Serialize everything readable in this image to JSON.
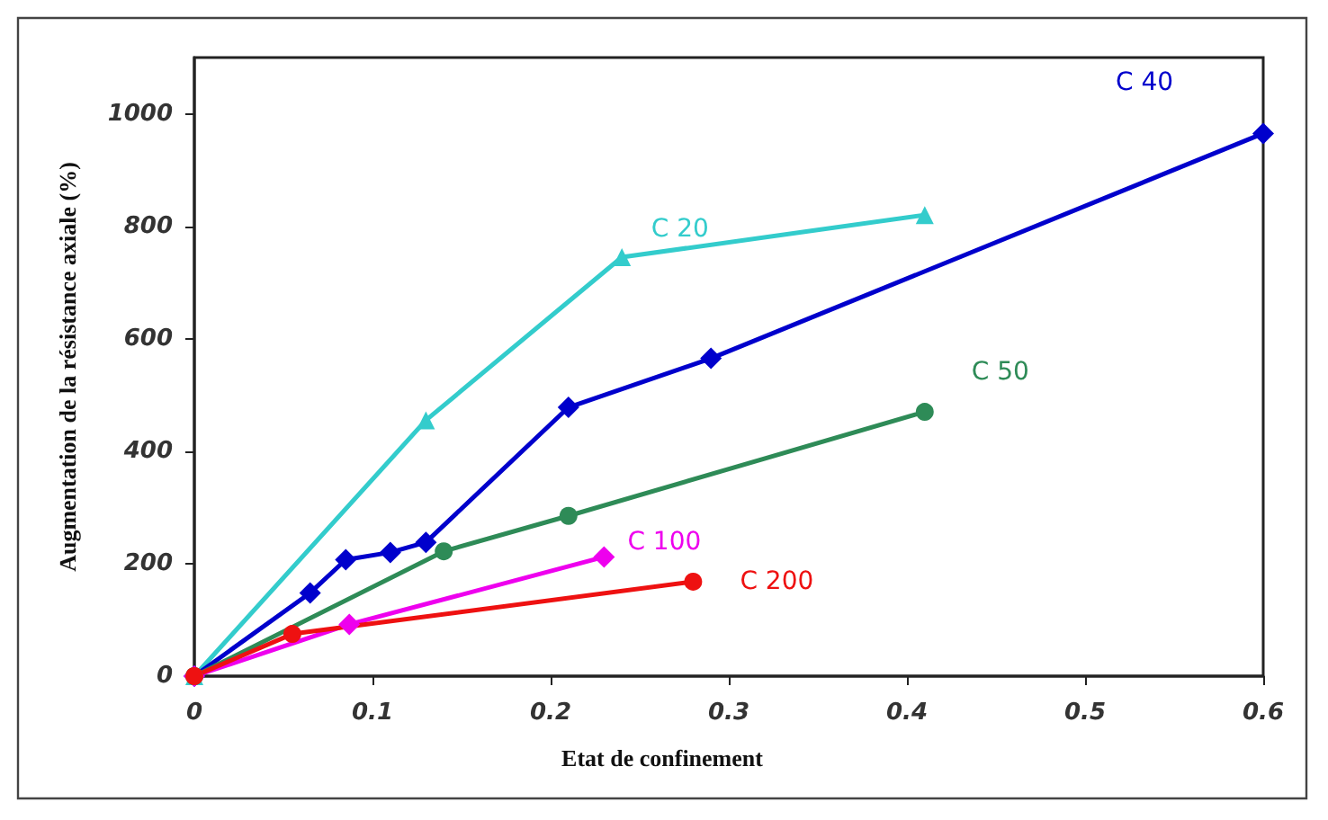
{
  "chart_data": {
    "type": "line",
    "xlabel": "Etat de confinement",
    "ylabel": "Augmentation de la résistance axiale (%)",
    "xlim": [
      0,
      0.6
    ],
    "xticks": [
      0,
      0.1,
      0.2,
      0.3,
      0.4,
      0.5,
      0.6
    ],
    "ylim": [
      0,
      1100
    ],
    "yticks": [
      0,
      200,
      400,
      600,
      800,
      1000
    ],
    "grid": false,
    "legend": false,
    "line_style": "solid",
    "series": [
      {
        "name": "C 20",
        "color": "#33cccc",
        "marker": "triangle",
        "x": [
          0,
          0.13,
          0.24,
          0.41
        ],
        "values": [
          0,
          455,
          745,
          820
        ]
      },
      {
        "name": "C 40",
        "color": "#0000cc",
        "marker": "diamond",
        "x": [
          0,
          0.065,
          0.085,
          0.11,
          0.13,
          0.21,
          0.29,
          0.6
        ],
        "values": [
          0,
          148,
          207,
          220,
          238,
          478,
          565,
          965
        ]
      },
      {
        "name": "C 50",
        "color": "#2e8b57",
        "marker": "circle",
        "x": [
          0,
          0.14,
          0.21,
          0.41
        ],
        "values": [
          0,
          222,
          285,
          470
        ]
      },
      {
        "name": "C 100",
        "color": "#ee00ee",
        "marker": "diamond",
        "x": [
          0,
          0.087,
          0.23
        ],
        "values": [
          0,
          92,
          212
        ]
      },
      {
        "name": "C 200",
        "color": "#ee1111",
        "marker": "circle",
        "x": [
          0,
          0.055,
          0.28
        ],
        "values": [
          0,
          75,
          168
        ]
      }
    ]
  }
}
